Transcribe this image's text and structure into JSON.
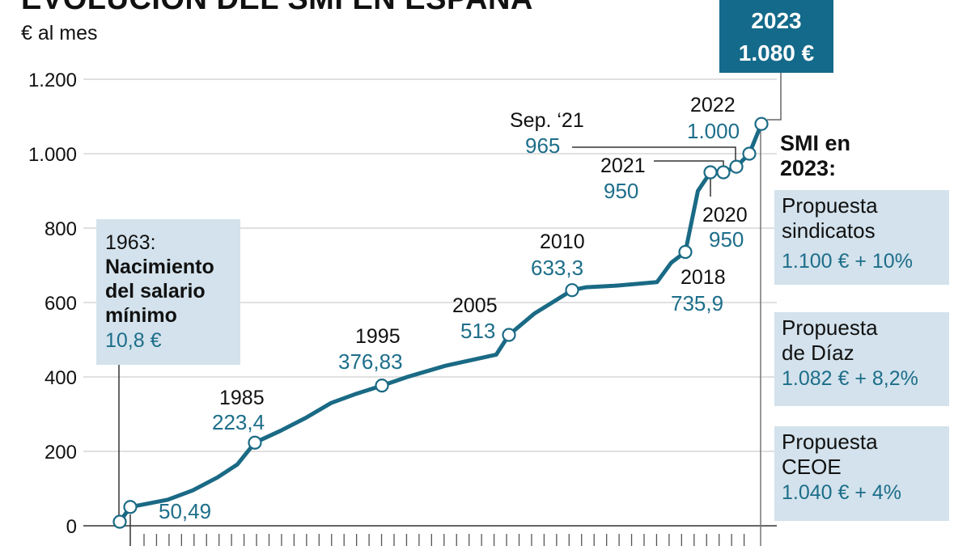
{
  "header": {
    "title": "EVOLUCIÓN DEL SMI EN ESPAÑA",
    "unit": "€ al mes"
  },
  "chart_data": {
    "type": "line",
    "title": "EVOLUCIÓN DEL SMI EN ESPAÑA",
    "ylabel": "€ al mes",
    "xlabel": "",
    "ylim": [
      0,
      1200
    ],
    "yticks": [
      0,
      200,
      400,
      600,
      800,
      1000,
      1200
    ],
    "ytick_labels": [
      "0",
      "200",
      "400",
      "600",
      "800",
      "1.000",
      "1.200"
    ],
    "grid": true,
    "series": [
      {
        "name": "SMI",
        "color": "#1a6a85",
        "points": [
          {
            "year": 1963,
            "value": 10.8
          },
          {
            "year": 1980,
            "value": 50.49
          },
          {
            "year": 1981.5,
            "value": 70
          },
          {
            "year": 1982.5,
            "value": 95
          },
          {
            "year": 1983.5,
            "value": 130
          },
          {
            "year": 1984.3,
            "value": 165
          },
          {
            "year": 1985,
            "value": 223.4
          },
          {
            "year": 1987,
            "value": 255
          },
          {
            "year": 1989,
            "value": 290
          },
          {
            "year": 1991,
            "value": 330
          },
          {
            "year": 1993,
            "value": 355
          },
          {
            "year": 1995,
            "value": 376.83
          },
          {
            "year": 1997,
            "value": 400
          },
          {
            "year": 2000,
            "value": 430
          },
          {
            "year": 2004,
            "value": 460
          },
          {
            "year": 2005,
            "value": 513
          },
          {
            "year": 2007,
            "value": 570
          },
          {
            "year": 2010,
            "value": 633.3
          },
          {
            "year": 2011,
            "value": 641
          },
          {
            "year": 2013,
            "value": 645
          },
          {
            "year": 2016,
            "value": 655
          },
          {
            "year": 2017,
            "value": 707
          },
          {
            "year": 2018,
            "value": 735.9
          },
          {
            "year": 2019,
            "value": 900
          },
          {
            "year": 2020,
            "value": 950
          },
          {
            "year": 2021,
            "value": 950
          },
          {
            "year": 2021.7,
            "value": 965
          },
          {
            "year": 2022,
            "value": 1000
          },
          {
            "year": 2023,
            "value": 1080
          }
        ]
      }
    ],
    "markers": [
      {
        "year": 1963,
        "value": 10.8
      },
      {
        "year": 1980,
        "value": 50.49
      },
      {
        "year": 1985,
        "value": 223.4
      },
      {
        "year": 1995,
        "value": 376.83
      },
      {
        "year": 2005,
        "value": 513
      },
      {
        "year": 2010,
        "value": 633.3
      },
      {
        "year": 2018,
        "value": 735.9
      },
      {
        "year": 2020,
        "value": 950
      },
      {
        "year": 2021,
        "value": 950
      },
      {
        "year": 2021.7,
        "value": 965
      },
      {
        "year": 2022,
        "value": 1000
      },
      {
        "year": 2023,
        "value": 1080
      }
    ],
    "annotations": {
      "a1980": {
        "value": "50,49"
      },
      "a1985": {
        "year": "1985",
        "value": "223,4"
      },
      "a1995": {
        "year": "1995",
        "value": "376,83"
      },
      "a2005": {
        "year": "2005",
        "value": "513"
      },
      "a2010": {
        "year": "2010",
        "value": "633,3"
      },
      "a2018": {
        "year": "2018",
        "value": "735,9"
      },
      "a2020": {
        "year": "2020",
        "value": "950"
      },
      "a2021": {
        "year": "2021",
        "value": "950"
      },
      "asep21": {
        "year": "Sep. ‘21",
        "value": "965"
      },
      "a2022": {
        "year": "2022",
        "value": "1.000"
      },
      "a1963": {
        "line1": "1963:",
        "line2": "Nacimiento",
        "line3": "del salario",
        "line4": "mínimo",
        "value": "10,8 €"
      },
      "a2023": {
        "year": "2023",
        "value": "1.080 €"
      }
    },
    "x_tick_count": 50
  },
  "sidebar": {
    "heading_line1": "SMI en",
    "heading_line2": "2023:",
    "proposals": [
      {
        "name_line1": "Propuesta",
        "name_line2": "sindicatos",
        "value": "1.100 € + 10%"
      },
      {
        "name_line1": "Propuesta",
        "name_line2": "de Díaz",
        "value": "1.082 € + 8,2%"
      },
      {
        "name_line1": "Propuesta",
        "name_line2": "CEOE",
        "value": "1.040 € + 4%"
      }
    ]
  }
}
